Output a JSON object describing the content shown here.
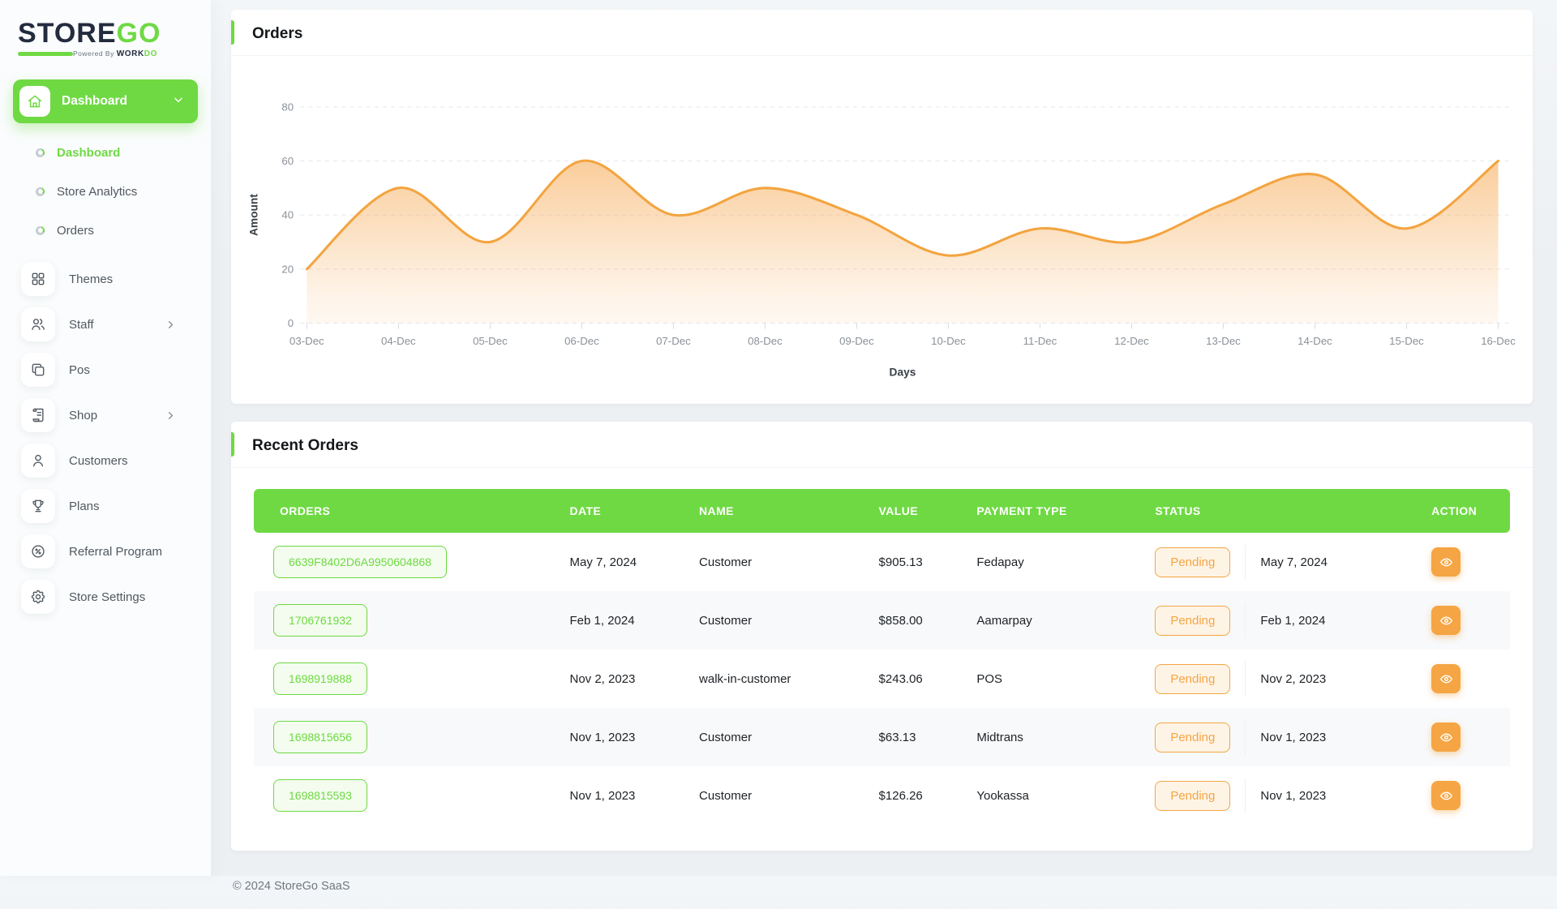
{
  "brand": {
    "name_store": "STORE",
    "name_go": "GO",
    "tagline_prefix": "Powered By",
    "tagline_work": "WORK",
    "tagline_do": "DO"
  },
  "sidebar": {
    "group_label": "Dashboard",
    "sub_items": [
      {
        "label": "Dashboard",
        "active": true
      },
      {
        "label": "Store Analytics",
        "active": false
      },
      {
        "label": "Orders",
        "active": false
      }
    ],
    "items": [
      {
        "label": "Themes",
        "icon": "grid-icon",
        "chevron": false
      },
      {
        "label": "Staff",
        "icon": "users-icon",
        "chevron": true
      },
      {
        "label": "Pos",
        "icon": "pos-icon",
        "chevron": false
      },
      {
        "label": "Shop",
        "icon": "receipt-icon",
        "chevron": true
      },
      {
        "label": "Customers",
        "icon": "user-icon",
        "chevron": false
      },
      {
        "label": "Plans",
        "icon": "trophy-icon",
        "chevron": false
      },
      {
        "label": "Referral Program",
        "icon": "percent-badge-icon",
        "chevron": false
      },
      {
        "label": "Store Settings",
        "icon": "gear-icon",
        "chevron": false
      }
    ]
  },
  "orders_card": {
    "title": "Orders"
  },
  "chart_data": {
    "type": "area",
    "title": "Orders",
    "x": [
      "03-Dec",
      "04-Dec",
      "05-Dec",
      "06-Dec",
      "07-Dec",
      "08-Dec",
      "09-Dec",
      "10-Dec",
      "11-Dec",
      "12-Dec",
      "13-Dec",
      "14-Dec",
      "15-Dec",
      "16-Dec"
    ],
    "values": [
      20,
      50,
      30,
      60,
      40,
      50,
      40,
      25,
      35,
      30,
      44,
      55,
      35,
      60
    ],
    "xlabel": "Days",
    "ylabel": "Amount",
    "ylim": [
      0,
      80
    ],
    "yticks": [
      0,
      20,
      40,
      60,
      80
    ],
    "grid": "horizontal-dashed",
    "legend": "none",
    "line_color": "#f3a43f",
    "fill_color": "#f6a54b"
  },
  "recent_orders": {
    "title": "Recent Orders",
    "columns": [
      "ORDERS",
      "DATE",
      "NAME",
      "VALUE",
      "PAYMENT TYPE",
      "STATUS",
      "ACTION"
    ],
    "rows": [
      {
        "order_id": "6639F8402D6A9950604868",
        "date": "May 7, 2024",
        "name": "Customer",
        "value": "$905.13",
        "payment_type": "Fedapay",
        "status": "Pending",
        "status_date": "May 7, 2024"
      },
      {
        "order_id": "1706761932",
        "date": "Feb 1, 2024",
        "name": "Customer",
        "value": "$858.00",
        "payment_type": "Aamarpay",
        "status": "Pending",
        "status_date": "Feb 1, 2024"
      },
      {
        "order_id": "1698919888",
        "date": "Nov 2, 2023",
        "name": "walk-in-customer",
        "value": "$243.06",
        "payment_type": "POS",
        "status": "Pending",
        "status_date": "Nov 2, 2023"
      },
      {
        "order_id": "1698815656",
        "date": "Nov 1, 2023",
        "name": "Customer",
        "value": "$63.13",
        "payment_type": "Midtrans",
        "status": "Pending",
        "status_date": "Nov 1, 2023"
      },
      {
        "order_id": "1698815593",
        "date": "Nov 1, 2023",
        "name": "Customer",
        "value": "$126.26",
        "payment_type": "Yookassa",
        "status": "Pending",
        "status_date": "Nov 1, 2023"
      }
    ]
  },
  "footer": {
    "copyright": "© 2024 StoreGo SaaS"
  },
  "colors": {
    "primary_green": "#6fd943",
    "accent_orange": "#f5a543",
    "logo_dark": "#232b3e",
    "table_header_bg": "#6fd943",
    "status_pending_bg": "#fef4e6"
  }
}
